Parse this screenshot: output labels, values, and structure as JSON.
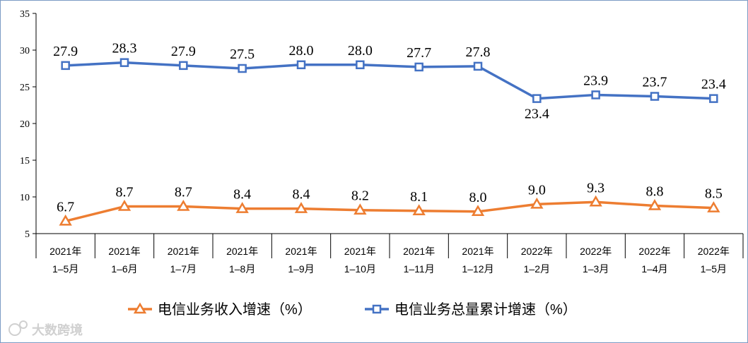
{
  "chart_data": {
    "type": "line",
    "categories": [
      [
        "2021年",
        "1–5月"
      ],
      [
        "2021年",
        "1–6月"
      ],
      [
        "2021年",
        "1–7月"
      ],
      [
        "2021年",
        "1–8月"
      ],
      [
        "2021年",
        "1–9月"
      ],
      [
        "2021年",
        "1–10月"
      ],
      [
        "2021年",
        "1–11月"
      ],
      [
        "2021年",
        "1–12月"
      ],
      [
        "2022年",
        "1–2月"
      ],
      [
        "2022年",
        "1–3月"
      ],
      [
        "2022年",
        "1–4月"
      ],
      [
        "2022年",
        "1–5月"
      ]
    ],
    "ylim": [
      5,
      35
    ],
    "yticks": [
      5,
      10,
      15,
      20,
      25,
      30,
      35
    ],
    "series": [
      {
        "name": "电信业务收入增速（%）",
        "color": "#ed7d31",
        "marker": "triangle",
        "values": [
          6.7,
          8.7,
          8.7,
          8.4,
          8.4,
          8.2,
          8.1,
          8.0,
          9.0,
          9.3,
          8.8,
          8.5
        ],
        "labels": [
          "6.7",
          "8.7",
          "8.7",
          "8.4",
          "8.4",
          "8.2",
          "8.1",
          "8.0",
          "9.0",
          "9.3",
          "8.8",
          "8.5"
        ]
      },
      {
        "name": "电信业务总量累计增速（%）",
        "color": "#4472c4",
        "marker": "square",
        "values": [
          27.9,
          28.3,
          27.9,
          27.5,
          28.0,
          28.0,
          27.7,
          27.8,
          23.4,
          23.9,
          23.7,
          23.4
        ],
        "labels": [
          "27.9",
          "28.3",
          "27.9",
          "27.5",
          "28.0",
          "28.0",
          "27.7",
          "27.8",
          "23.4",
          "23.9",
          "23.7",
          "23.4"
        ]
      }
    ],
    "legend_position": "bottom",
    "grid": false
  },
  "watermark": {
    "text": "大数跨境",
    "icon": "logo-icon"
  }
}
